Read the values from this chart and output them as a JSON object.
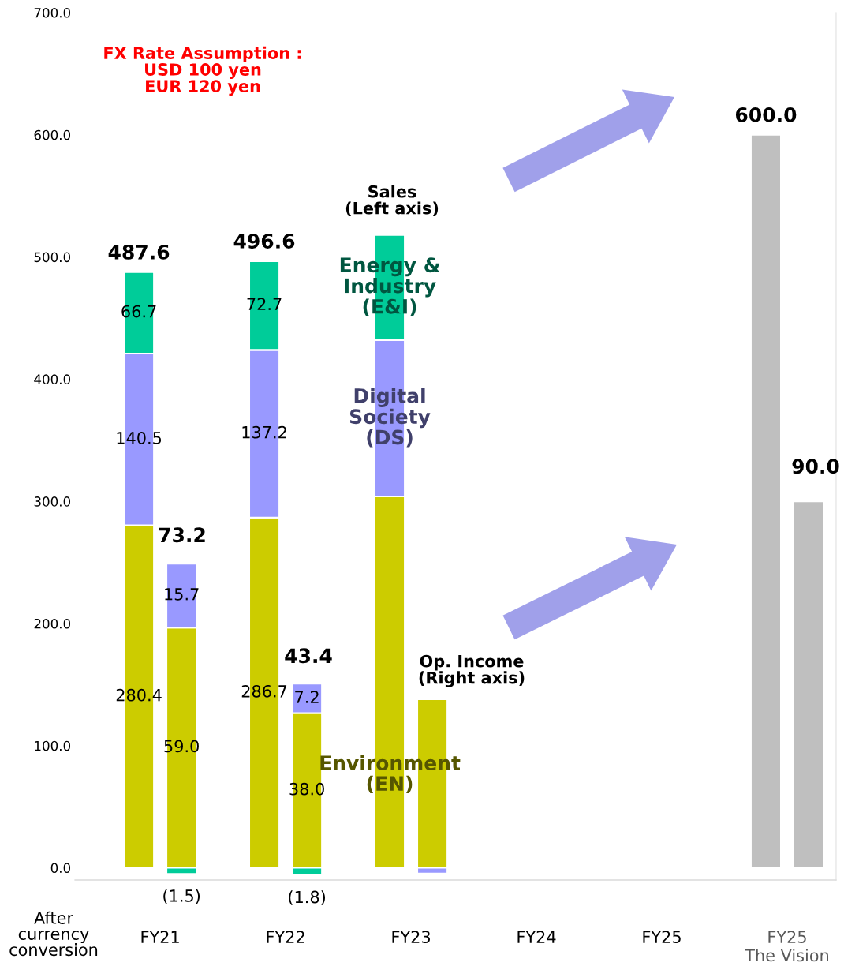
{
  "chart_data": {
    "type": "bar",
    "stacked": true,
    "categories": [
      "FY21",
      "FY22",
      "FY23",
      "FY24",
      "FY25",
      "FY25\nThe Vision"
    ],
    "ylim": [
      -10,
      700
    ],
    "yticks": [
      {
        "value": 0,
        "label": "0.0"
      },
      {
        "value": 100,
        "label": "100.0"
      },
      {
        "value": 200,
        "label": "200.0"
      },
      {
        "value": 300,
        "label": "300.0"
      },
      {
        "value": 400,
        "label": "400.0"
      },
      {
        "value": 500,
        "label": "500.0"
      },
      {
        "value": 600,
        "label": "600.0"
      },
      {
        "value": 700,
        "label": "700.0"
      }
    ],
    "y2lim": [
      -3,
      210
    ],
    "grid": false,
    "legend": false,
    "series": [
      {
        "name": "Environment\n(EN)",
        "color": "#cccc00",
        "values": [
          280.4,
          286.7,
          304,
          null,
          null,
          null
        ],
        "value_labels": [
          "280.4",
          "286.7",
          null,
          null,
          null,
          null
        ]
      },
      {
        "name": "Digital\nSociety\n(DS)",
        "color": "#9999ff",
        "values": [
          140.5,
          137.2,
          128,
          null,
          null,
          null
        ],
        "value_labels": [
          "140.5",
          "137.2",
          null,
          null,
          null,
          null
        ]
      },
      {
        "name": "Energy &\nIndustry\n(E&I)",
        "color": "#00cc99",
        "values": [
          66.7,
          72.7,
          86,
          null,
          null,
          null
        ],
        "value_labels": [
          "66.7",
          "72.7",
          null,
          null,
          null,
          null
        ]
      },
      {
        "color": "#cccc00",
        "axis": "y2",
        "values": [
          59.0,
          38.0,
          41.4,
          null,
          null,
          null
        ],
        "value_labels": [
          "59.0",
          "38.0",
          null,
          null,
          null,
          null
        ]
      },
      {
        "color": "#9999ff",
        "axis": "y2",
        "values": [
          15.7,
          7.2,
          -1.4,
          null,
          null,
          null
        ],
        "value_labels": [
          "15.7",
          "7.2",
          null,
          null,
          null,
          null
        ]
      },
      {
        "color": "#00cc99",
        "axis": "y2",
        "values": [
          -1.5,
          -1.8,
          null,
          null,
          null,
          null
        ],
        "value_labels": [
          "(1.5)",
          "(1.8)",
          null,
          null,
          null,
          null
        ]
      },
      {
        "color": "#bfbfbf",
        "values": [
          null,
          null,
          null,
          null,
          null,
          600.0
        ]
      },
      {
        "color": "#bfbfbf",
        "axis": "y2",
        "values": [
          null,
          null,
          null,
          null,
          null,
          90.0
        ]
      }
    ],
    "totals": [
      "487.6",
      "496.6",
      null,
      null,
      null,
      "600.0"
    ],
    "annotations": [
      "73.2",
      "43.4",
      "90.0",
      "FX Rate Assumption :\nUSD 100 yen\nEUR 120 yen",
      "Sales\n(Left axis)",
      "Op. Income\n(Right axis)",
      "After\ncurrency\nconversion"
    ]
  }
}
